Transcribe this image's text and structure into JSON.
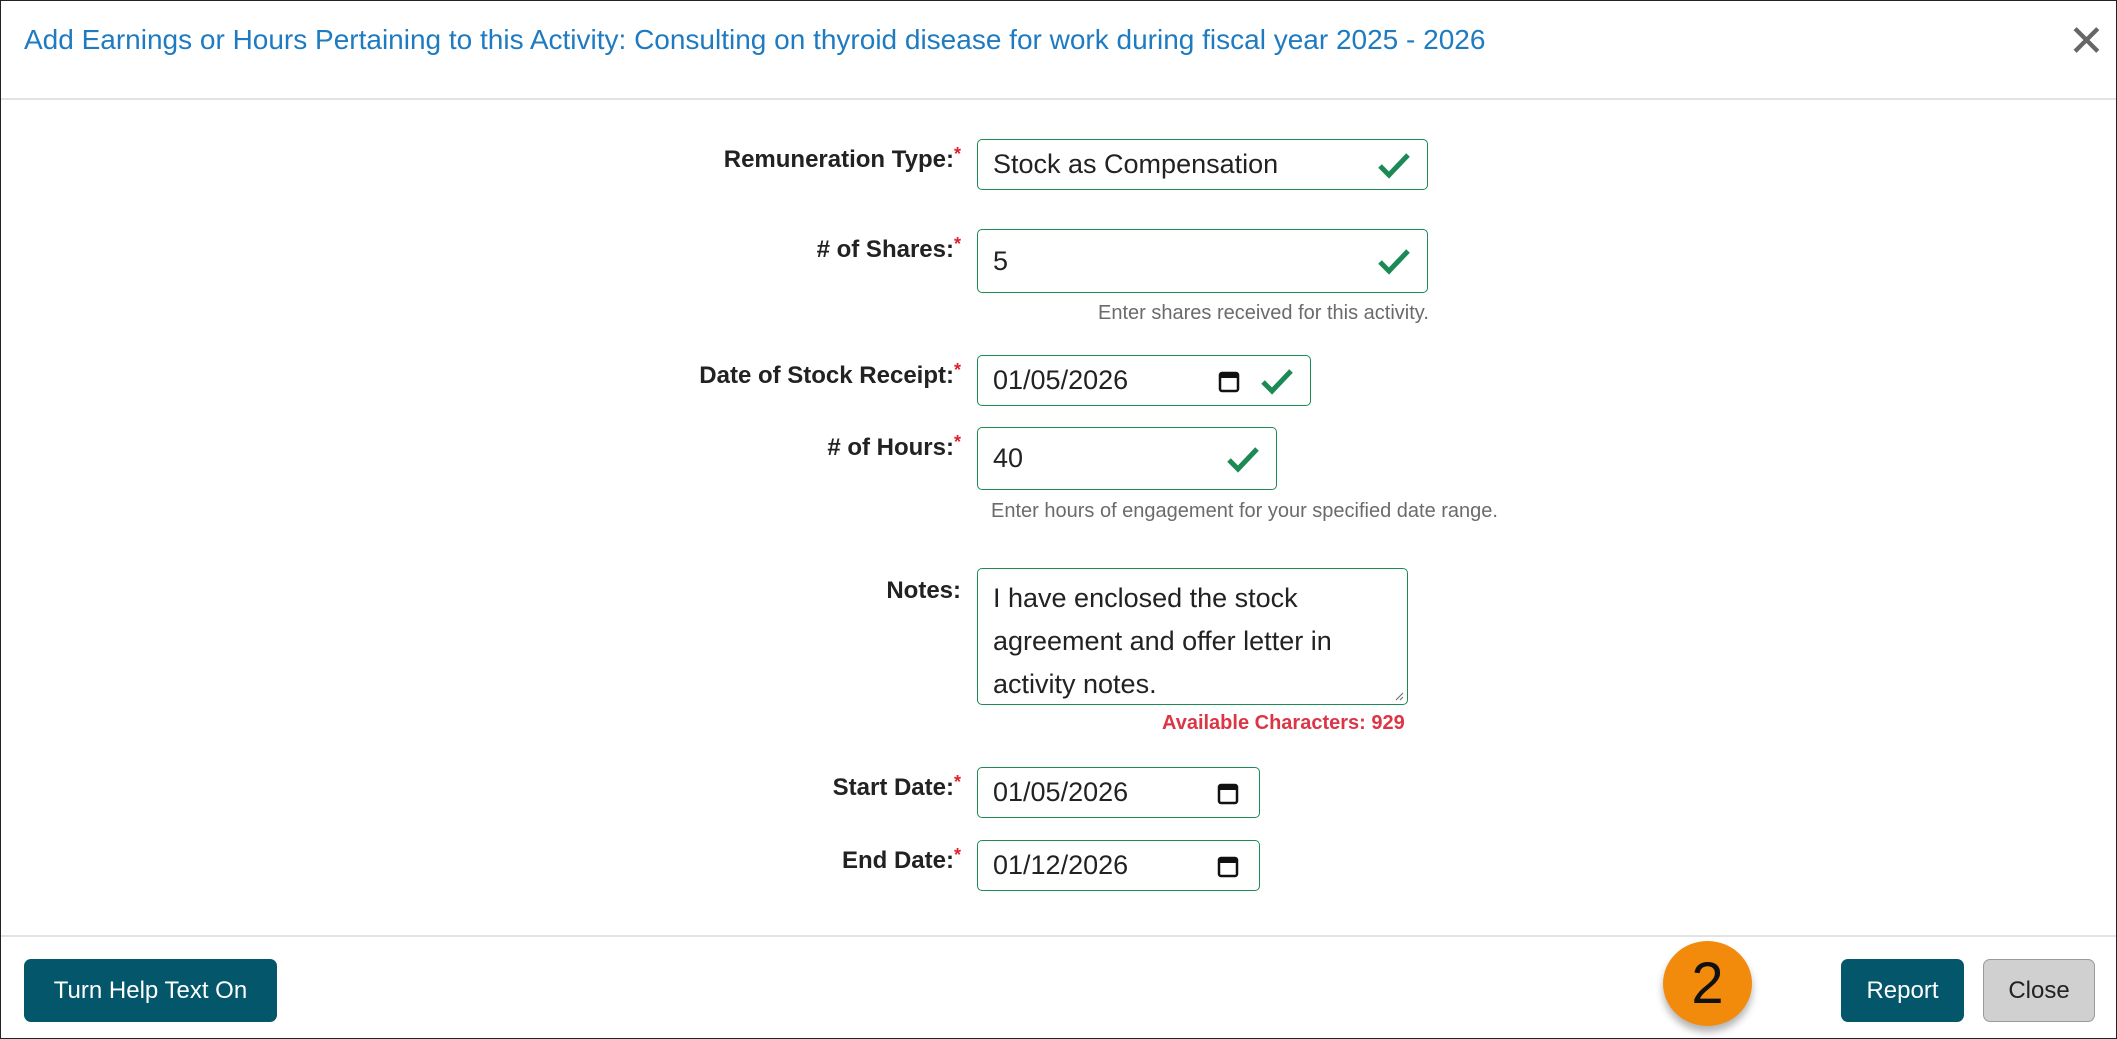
{
  "dialog": {
    "title": "Add Earnings or Hours Pertaining to this Activity: Consulting on thyroid disease for work during fiscal year 2025 - 2026",
    "close_icon": "x-icon"
  },
  "form": {
    "required_marker": "*",
    "remuneration_type": {
      "label": "Remuneration Type:",
      "value": "Stock as Compensation"
    },
    "shares": {
      "label": "# of Shares:",
      "value": "5",
      "help": "Enter shares received for this activity."
    },
    "stock_receipt_date": {
      "label": "Date of Stock Receipt:",
      "value": "01/05/2026"
    },
    "hours": {
      "label": "# of Hours:",
      "value": "40",
      "help": "Enter hours of engagement for your specified date range."
    },
    "notes": {
      "label": "Notes:",
      "value": "I have enclosed the stock agreement and offer letter in activity notes.",
      "available": "Available Characters: 929"
    },
    "start_date": {
      "label": "Start Date:",
      "value": "01/05/2026"
    },
    "end_date": {
      "label": "End Date:",
      "value": "01/12/2026"
    }
  },
  "footer": {
    "help_toggle": "Turn Help Text On",
    "step_badge": "2",
    "report": "Report",
    "close": "Close"
  },
  "colors": {
    "title": "#1f7bc1",
    "valid": "#1c8a55",
    "primary_button": "#04566b",
    "error": "#dc3545",
    "badge": "#f28a0c"
  }
}
